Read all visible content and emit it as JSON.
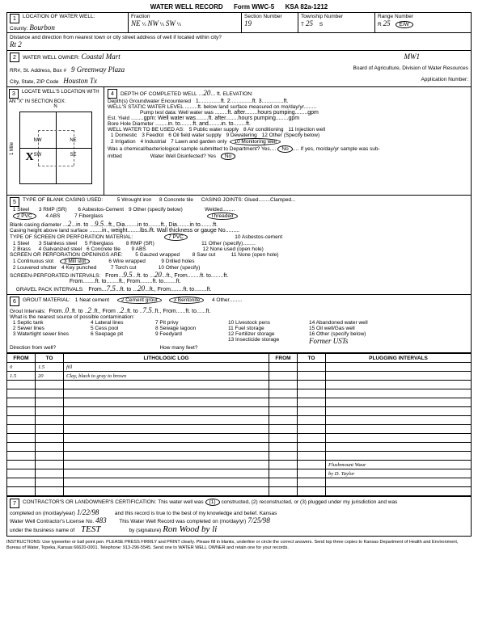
{
  "header": {
    "title": "WATER WELL RECORD",
    "form": "Form WWC-5",
    "ksa": "KSA 82a-1212"
  },
  "sec1": {
    "label": "LOCATION OF WATER WELL:",
    "county_label": "County:",
    "county": "Bourbon",
    "fraction_label": "Fraction",
    "fraction1": "NE",
    "fraction2": "NW",
    "fraction3": "SW",
    "section_label": "Section Number",
    "section": "19",
    "township_label": "Township Number",
    "township_t": "T",
    "township": "25",
    "township_s": "S",
    "range_label": "Range Number",
    "range_r": "R",
    "range": "25",
    "range_ew": "E/W",
    "distance_label": "Distance and direction from nearest town or city street address of well if located within city?",
    "distance": "Rt 2"
  },
  "sec2": {
    "label": "WATER WELL OWNER:",
    "owner": "Coastal Mart",
    "well_id": "MW1",
    "rr_label": "RR#, St. Address, Box #",
    "address": "9 Greenway Plaza",
    "board_label": "Board of Agriculture, Division of Water Resources",
    "city_label": "City, State, ZIP Code",
    "city": "Houston Tx",
    "app_label": "Application Number:"
  },
  "sec3": {
    "label": "LOCATE WELL'S LOCATION WITH AN \"X\" IN SECTION BOX:",
    "n": "N",
    "s": "S",
    "e": "E",
    "w": "W",
    "nw": "NW",
    "ne": "NE",
    "sw": "SW",
    "se": "SE",
    "mile": "1 Mile"
  },
  "sec4": {
    "label": "DEPTH OF COMPLETED WELL",
    "depth": "20",
    "depth_suffix": "ft. ELEVATION:",
    "groundwater": "Depth(s) Groundwater Encountered",
    "static_label": "WELL'S STATIC WATER LEVEL",
    "static_suffix": "ft. below land surface measured on mo/day/yr",
    "pump_test": "Pump test data: Well water was",
    "est_yield": "Est. Yield",
    "bore": "Bore Hole Diameter",
    "use_label": "WELL WATER TO BE USED AS:",
    "uses": [
      "1 Domestic",
      "2 Irrigation",
      "3 Feedlot",
      "4 Industrial",
      "5 Public water supply",
      "6 Oil field water supply",
      "7 Lawn and garden only",
      "8 Air conditioning",
      "9 Dewatering",
      "10 Monitoring well",
      "11 Injection well",
      "12 Other (Specify below)"
    ],
    "sample_q": "Was a chemical/bacteriological sample submitted to Department? Yes",
    "no": "No",
    "sample_if": "If yes, mo/day/yr sample was sub-",
    "mitted": "mitted",
    "disinfected": "Water Well Disinfected? Yes",
    "no2": "No"
  },
  "sec5": {
    "label": "TYPE OF BLANK CASING USED:",
    "casings": [
      "1 Steel",
      "2 PVC",
      "3 RMP (SR)",
      "4 ABS",
      "5 Wrought iron",
      "6 Asbestos-Cement",
      "7 Fiberglass",
      "8 Concrete tile",
      "9 Other (specify below)"
    ],
    "joints": "CASING JOINTS: Glued........Clamped...",
    "welded": "Welded",
    "threaded": "Threaded",
    "blank_dia_label": "Blank casing diameter",
    "dia": "2",
    "dia_to": "9.5",
    "height_label": "Casing height above land surface",
    "screen_label": "TYPE OF SCREEN OR PERFORATION MATERIAL:",
    "screens": [
      "1 Steel",
      "2 Brass",
      "3 Stainless steel",
      "4 Galvanized steel",
      "5 Fiberglass",
      "6 Concrete tile",
      "7 PVC",
      "8 RMP (SR)",
      "9 ABS",
      "10 Asbestos-cement",
      "11 Other (specify)",
      "12 None used (open hole)"
    ],
    "openings_label": "SCREEN OR PERFORATION OPENINGS ARE:",
    "openings": [
      "1 Continuous slot",
      "2 Louvered shutter",
      "3 Mill slot",
      "4 Key punched",
      "5 Gauzed wrapped",
      "6 Wire wrapped",
      "7 Torch cut",
      "8 Saw cut",
      "9 Drilled holes",
      "10 Other (specify)",
      "11 None (open hole)"
    ],
    "screen_int": "SCREEN-PERFORATED INTERVALS:",
    "from1": "9.5",
    "to1": "20",
    "gravel_int": "GRAVEL PACK INTERVALS:",
    "gfrom1": "7.5",
    "gto1": "20"
  },
  "sec6": {
    "label": "GROUT MATERIAL:",
    "grouts": [
      "1 Neat cement",
      "2 Cement grout",
      "3 Bentonite",
      "4 Other"
    ],
    "grout_int": "Grout Intervals:",
    "gi_from1": "0",
    "gi_to1": "2",
    "gi_from2": "2",
    "gi_to2": "7.5",
    "contamination": "What is the nearest source of possible contamination:",
    "sources": [
      "1 Septic tank",
      "2 Sewer lines",
      "3 Watertight sewer lines",
      "4 Lateral lines",
      "5 Cess pool",
      "6 Seepage pit",
      "7 Pit privy",
      "8 Sewage lagoon",
      "9 Feedyard",
      "10 Livestock pens",
      "11 Fuel storage",
      "12 Fertilizer storage",
      "13 Insecticide storage",
      "14 Abandoned water well",
      "15 Oil well/Gas well",
      "16 Other (specify below)"
    ],
    "other": "Former USTs",
    "direction": "Direction from well?",
    "howmany": "How many feet?"
  },
  "log": {
    "from_h": "FROM",
    "to_h": "TO",
    "lith_h": "LITHOLOGIC LOG",
    "plug_h": "PLUGGING INTERVALS",
    "rows": [
      {
        "from": "0",
        "to": "1.5",
        "desc": "fill"
      },
      {
        "from": "1.5",
        "to": "20",
        "desc": "Clay, black to gray to brown"
      }
    ],
    "stamp1": "Flushmount Waur",
    "stamp2": "by D. Taylor"
  },
  "sec7": {
    "label": "CONTRACTOR'S OR LANDOWNER'S CERTIFICATION:",
    "text1": "This water well was",
    "opt1": "(1)",
    "text2": "constructed, (2) reconstructed, or (3) plugged under my jurisdiction and was",
    "text3": "completed on (mo/day/year)",
    "date1": "1/22/98",
    "text4": "and this record is true to the best of my knowledge and belief. Kansas",
    "text5": "Water Well Contractor's License No.",
    "lic": "483",
    "text6": "This Water Well Record was completed on (mo/day/yr)",
    "date2": "7/25/98",
    "text7": "under the business name of",
    "bus": "TEST",
    "sig_label": "by (signature)",
    "sig": "Ron Wood by li"
  },
  "footer": "INSTRUCTIONS: Use typewriter or ball point pen. PLEASE PRESS FIRMLY and PRINT clearly. Please fill in blanks, underline or circle the correct answers. Send top three copies to Kansas Department of Health and Environment, Bureau of Water, Topeka, Kansas 66620-0001. Telephone: 913-296-5545. Send one to WATER WELL OWNER and retain one for your records.",
  "colors": {
    "ink": "#000000",
    "paper": "#ffffff"
  }
}
